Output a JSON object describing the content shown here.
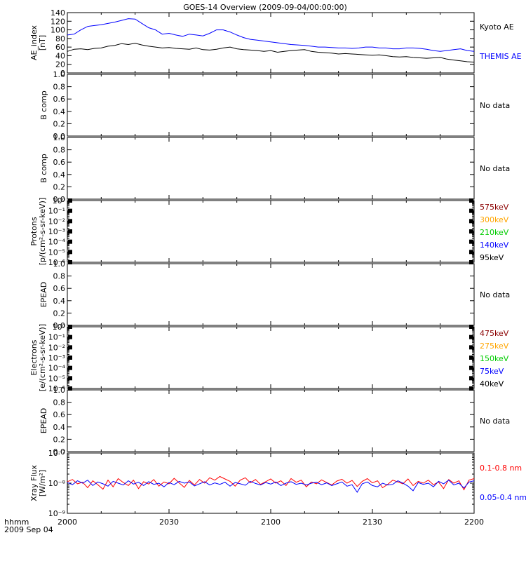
{
  "title": "GOES-14 Overview (2009-09-04/00:00:00)",
  "time_axis": {
    "ticks": [
      "2000",
      "2030",
      "2100",
      "2130",
      "2200"
    ],
    "label_line1": "hhmm",
    "label_line2": "2009 Sep 04"
  },
  "colors": {
    "black": "#000000",
    "blue": "#0000ff",
    "red": "#ff0000",
    "orange": "#ffa500",
    "green": "#00cc00",
    "darkred": "#8b0000"
  },
  "chart_data": [
    {
      "id": "ae",
      "type": "line",
      "ylabel": [
        "AE_index",
        "[nT]"
      ],
      "ylim": [
        0,
        140
      ],
      "yticks": [
        "0",
        "20",
        "40",
        "60",
        "80",
        "100",
        "120",
        "140"
      ],
      "xlim": [
        0,
        120
      ],
      "series": [
        {
          "name": "Kyoto AE",
          "color": "#000000",
          "x": [
            0,
            2,
            4,
            6,
            8,
            10,
            12,
            14,
            16,
            18,
            20,
            22,
            24,
            26,
            28,
            30,
            32,
            34,
            36,
            38,
            40,
            42,
            44,
            46,
            48,
            50,
            52,
            54,
            56,
            58,
            60,
            62,
            64,
            66,
            68,
            70,
            72,
            74,
            76,
            78,
            80,
            82,
            84,
            86,
            88,
            90,
            92,
            94,
            96,
            98,
            100,
            102,
            104,
            106,
            108,
            110,
            112,
            114,
            116,
            118,
            120
          ],
          "values": [
            50,
            55,
            56,
            54,
            57,
            58,
            62,
            64,
            68,
            66,
            69,
            65,
            62,
            60,
            58,
            59,
            57,
            56,
            55,
            58,
            54,
            53,
            55,
            58,
            60,
            56,
            54,
            53,
            52,
            50,
            52,
            48,
            50,
            52,
            53,
            54,
            50,
            48,
            47,
            46,
            44,
            45,
            44,
            43,
            42,
            41,
            42,
            40,
            38,
            37,
            38,
            36,
            35,
            34,
            35,
            36,
            32,
            30,
            28,
            26,
            25
          ]
        },
        {
          "name": "THEMIS AE",
          "color": "#0000ff",
          "x": [
            0,
            2,
            4,
            6,
            8,
            10,
            12,
            14,
            16,
            18,
            20,
            22,
            24,
            26,
            28,
            30,
            32,
            34,
            36,
            38,
            40,
            42,
            44,
            46,
            48,
            50,
            52,
            54,
            56,
            58,
            60,
            62,
            64,
            66,
            68,
            70,
            72,
            74,
            76,
            78,
            80,
            82,
            84,
            86,
            88,
            90,
            92,
            94,
            96,
            98,
            100,
            102,
            104,
            106,
            108,
            110,
            112,
            114,
            116,
            118,
            120
          ],
          "values": [
            88,
            90,
            100,
            108,
            110,
            112,
            115,
            118,
            122,
            126,
            125,
            115,
            105,
            100,
            90,
            92,
            88,
            85,
            90,
            88,
            86,
            92,
            100,
            100,
            95,
            88,
            82,
            78,
            76,
            74,
            72,
            70,
            68,
            66,
            65,
            64,
            62,
            60,
            60,
            59,
            58,
            58,
            57,
            58,
            60,
            60,
            58,
            58,
            56,
            56,
            58,
            58,
            57,
            55,
            52,
            50,
            52,
            54,
            56,
            52,
            50
          ]
        }
      ],
      "legend": [
        {
          "label": "Kyoto AE",
          "color": "#000000"
        },
        {
          "label": "THEMIS AE",
          "color": "#0000ff"
        }
      ]
    },
    {
      "id": "bcomp1",
      "type": "line",
      "ylabel": [
        "B comp"
      ],
      "ylim": [
        0,
        1
      ],
      "yticks": [
        "0.0",
        "0.2",
        "0.4",
        "0.6",
        "0.8",
        "1.0"
      ],
      "note": "No data"
    },
    {
      "id": "bcomp2",
      "type": "line",
      "ylabel": [
        "B comp"
      ],
      "ylim": [
        0,
        1
      ],
      "yticks": [
        "0.0",
        "0.2",
        "0.4",
        "0.6",
        "0.8",
        "1.0"
      ],
      "note": "No data"
    },
    {
      "id": "protons",
      "type": "line",
      "log": true,
      "ylabel": [
        "Protons",
        "[p/(cm²-s-sr-keV)]"
      ],
      "ylim_exp": [
        -6,
        0
      ],
      "yticks": [
        "10⁻⁶",
        "10⁻⁵",
        "10⁻⁴",
        "10⁻³",
        "10⁻²",
        "10⁻¹",
        "10⁰"
      ],
      "legend": [
        {
          "label": "575keV",
          "color": "#8b0000"
        },
        {
          "label": "300keV",
          "color": "#ffa500"
        },
        {
          "label": "210keV",
          "color": "#00cc00"
        },
        {
          "label": "140keV",
          "color": "#0000ff"
        },
        {
          "label": "95keV",
          "color": "#000000"
        }
      ]
    },
    {
      "id": "epead1",
      "type": "line",
      "ylabel": [
        "EPEAD"
      ],
      "ylim": [
        0,
        1
      ],
      "yticks": [
        "0.0",
        "0.2",
        "0.4",
        "0.6",
        "0.8",
        "1.0"
      ],
      "note": "No data"
    },
    {
      "id": "electrons",
      "type": "line",
      "log": true,
      "ylabel": [
        "Electrons",
        "[e/(cm²-s-sr-keV)]"
      ],
      "ylim_exp": [
        -6,
        0
      ],
      "yticks": [
        "10⁻⁶",
        "10⁻⁵",
        "10⁻⁴",
        "10⁻³",
        "10⁻²",
        "10⁻¹",
        "10⁰"
      ],
      "legend": [
        {
          "label": "475keV",
          "color": "#8b0000"
        },
        {
          "label": "275keV",
          "color": "#ffa500"
        },
        {
          "label": "150keV",
          "color": "#00cc00"
        },
        {
          "label": "75keV",
          "color": "#0000ff"
        },
        {
          "label": "40keV",
          "color": "#000000"
        }
      ]
    },
    {
      "id": "epead2",
      "type": "line",
      "ylabel": [
        "EPEAD"
      ],
      "ylim": [
        0,
        1
      ],
      "yticks": [
        "0.0",
        "0.2",
        "0.4",
        "0.6",
        "0.8",
        "1.0"
      ],
      "note": "No data"
    },
    {
      "id": "xray",
      "type": "line",
      "log": true,
      "ylabel": [
        "Xray Flux",
        "[W/m²]"
      ],
      "ylim_exp": [
        -9,
        -7
      ],
      "yticks": [
        "10⁻⁹",
        "10⁻⁸",
        "10⁻⁷"
      ],
      "xlim": [
        0,
        120
      ],
      "series": [
        {
          "name": "0.1-0.8 nm",
          "color": "#ff0000",
          "x": [
            0,
            1.5,
            3,
            4.5,
            6,
            7.5,
            9,
            10.5,
            12,
            13.5,
            15,
            16.5,
            18,
            19.5,
            21,
            22.5,
            24,
            25.5,
            27,
            28.5,
            30,
            31.5,
            33,
            34.5,
            36,
            37.5,
            39,
            40.5,
            42,
            43.5,
            45,
            46.5,
            48,
            49.5,
            51,
            52.5,
            54,
            55.5,
            57,
            58.5,
            60,
            61.5,
            63,
            64.5,
            66,
            67.5,
            69,
            70.5,
            72,
            73.5,
            75,
            76.5,
            78,
            79.5,
            81,
            82.5,
            84,
            85.5,
            87,
            88.5,
            90,
            91.5,
            93,
            94.5,
            96,
            97.5,
            99,
            100.5,
            102,
            103.5,
            105,
            106.5,
            108,
            109.5,
            111,
            112.5,
            114,
            115.5,
            117,
            118.5,
            120
          ],
          "values": [
            -7.95,
            -7.88,
            -8.02,
            -7.97,
            -8.15,
            -7.92,
            -8.05,
            -8.2,
            -7.9,
            -8.12,
            -7.85,
            -7.98,
            -8.08,
            -7.9,
            -8.18,
            -7.95,
            -8.03,
            -7.88,
            -8.1,
            -7.96,
            -8.02,
            -7.84,
            -7.99,
            -8.14,
            -7.91,
            -8.06,
            -7.88,
            -8.0,
            -7.82,
            -7.9,
            -7.78,
            -7.86,
            -7.94,
            -8.1,
            -7.9,
            -7.82,
            -7.99,
            -7.88,
            -8.04,
            -7.95,
            -7.86,
            -8.0,
            -7.92,
            -8.08,
            -7.85,
            -7.97,
            -7.9,
            -8.12,
            -7.96,
            -8.02,
            -7.89,
            -7.98,
            -8.06,
            -7.93,
            -7.87,
            -8.0,
            -7.91,
            -8.11,
            -7.94,
            -7.85,
            -7.99,
            -7.92,
            -8.15,
            -8.04,
            -7.9,
            -7.96,
            -8.02,
            -7.86,
            -8.08,
            -7.94,
            -8.0,
            -7.9,
            -8.05,
            -7.96,
            -8.18,
            -7.88,
            -8.0,
            -7.92,
            -8.22,
            -7.9,
            -7.85
          ]
        },
        {
          "name": "0.05-0.4 nm",
          "color": "#0000ff",
          "x": [
            0,
            1.5,
            3,
            4.5,
            6,
            7.5,
            9,
            10.5,
            12,
            13.5,
            15,
            16.5,
            18,
            19.5,
            21,
            22.5,
            24,
            25.5,
            27,
            28.5,
            30,
            31.5,
            33,
            34.5,
            36,
            37.5,
            39,
            40.5,
            42,
            43.5,
            45,
            46.5,
            48,
            49.5,
            51,
            52.5,
            54,
            55.5,
            57,
            58.5,
            60,
            61.5,
            63,
            64.5,
            66,
            67.5,
            69,
            70.5,
            72,
            73.5,
            75,
            76.5,
            78,
            79.5,
            81,
            82.5,
            84,
            85.5,
            87,
            88.5,
            90,
            91.5,
            93,
            94.5,
            96,
            97.5,
            99,
            100.5,
            102,
            103.5,
            105,
            106.5,
            108,
            109.5,
            111,
            112.5,
            114,
            115.5,
            117,
            118.5,
            120
          ],
          "values": [
            -7.98,
            -8.05,
            -7.92,
            -8.0,
            -7.9,
            -8.08,
            -7.96,
            -8.02,
            -8.1,
            -7.94,
            -8.0,
            -8.06,
            -7.92,
            -8.03,
            -7.97,
            -8.08,
            -7.95,
            -8.04,
            -8.0,
            -8.12,
            -7.98,
            -8.05,
            -7.94,
            -8.0,
            -7.96,
            -8.09,
            -8.02,
            -7.95,
            -8.06,
            -7.99,
            -8.04,
            -7.97,
            -8.1,
            -7.98,
            -8.02,
            -8.07,
            -7.94,
            -8.01,
            -8.06,
            -7.98,
            -8.03,
            -7.96,
            -8.08,
            -8.0,
            -7.95,
            -8.04,
            -8.0,
            -8.06,
            -8.0,
            -7.97,
            -8.05,
            -7.99,
            -8.08,
            -8.02,
            -7.96,
            -8.1,
            -8.05,
            -8.3,
            -8.02,
            -7.96,
            -8.08,
            -8.12,
            -8.0,
            -8.06,
            -8.04,
            -7.92,
            -8.0,
            -8.1,
            -8.25,
            -7.98,
            -8.04,
            -8.0,
            -8.12,
            -7.94,
            -8.02,
            -7.9,
            -8.06,
            -8.0,
            -8.16,
            -7.96,
            -7.92
          ]
        }
      ],
      "legend": [
        {
          "label": "0.1-0.8 nm",
          "color": "#ff0000"
        },
        {
          "label": "0.05-0.4 nm",
          "color": "#0000ff"
        }
      ]
    }
  ]
}
